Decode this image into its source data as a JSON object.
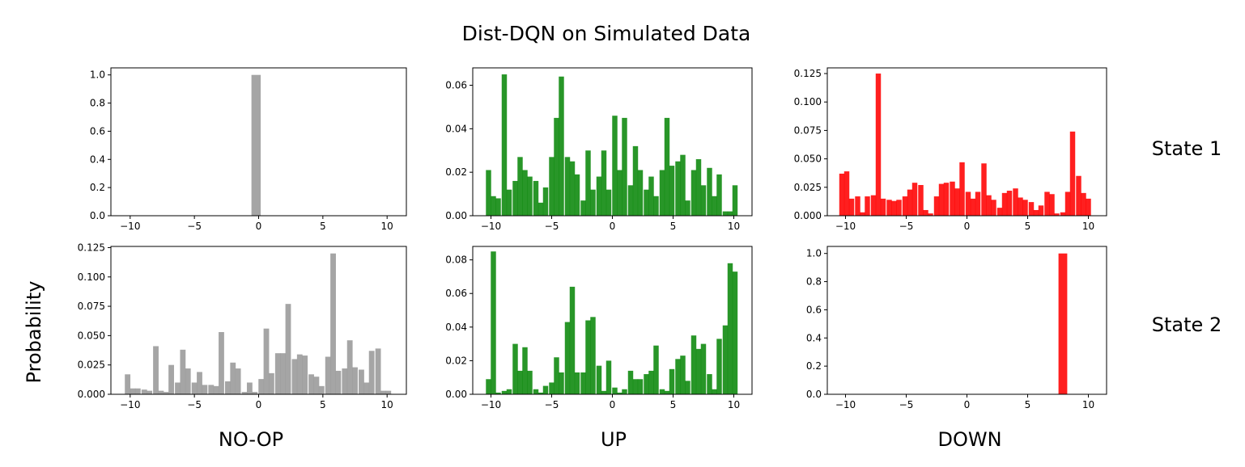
{
  "figure": {
    "title": "Dist-DQN on Simulated Data",
    "ylabel": "Probability",
    "column_labels": [
      "NO-OP",
      "UP",
      "DOWN"
    ],
    "row_labels": [
      "State 1",
      "State 2"
    ]
  },
  "chart_data": [
    {
      "type": "bar",
      "action": "NO-OP",
      "state": "State 1",
      "color": "#999999",
      "xlim": [
        -11.5,
        11.5
      ],
      "ylim": [
        0,
        1.05
      ],
      "xticks": [
        -10,
        -5,
        0,
        5,
        10
      ],
      "xtick_labels": [
        "−10",
        "−5",
        "0",
        "5",
        "10"
      ],
      "yticks": [
        0,
        0.2,
        0.4,
        0.6,
        0.8,
        1.0
      ],
      "ytick_labels": [
        "0.0",
        "0.2",
        "0.4",
        "0.6",
        "0.8",
        "1.0"
      ],
      "x": [
        -0.2
      ],
      "values": [
        1.0
      ]
    },
    {
      "type": "bar",
      "action": "UP",
      "state": "State 1",
      "color": "#0a870a",
      "xlim": [
        -11.5,
        11.5
      ],
      "ylim": [
        0,
        0.068
      ],
      "xticks": [
        -10,
        -5,
        0,
        5,
        10
      ],
      "xtick_labels": [
        "−10",
        "−5",
        "0",
        "5",
        "10"
      ],
      "yticks": [
        0,
        0.02,
        0.04,
        0.06
      ],
      "ytick_labels": [
        "0.00",
        "0.02",
        "0.04",
        "0.06"
      ],
      "x": [
        -10.2,
        -9.8,
        -9.4,
        -8.9,
        -8.5,
        -8.0,
        -7.6,
        -7.2,
        -6.8,
        -6.3,
        -5.9,
        -5.5,
        -5.0,
        -4.6,
        -4.2,
        -3.7,
        -3.3,
        -2.9,
        -2.4,
        -2.0,
        -1.6,
        -1.1,
        -0.7,
        -0.3,
        0.2,
        0.6,
        1.0,
        1.5,
        1.9,
        2.3,
        2.8,
        3.2,
        3.6,
        4.1,
        4.5,
        4.9,
        5.4,
        5.8,
        6.2,
        6.7,
        7.1,
        7.5,
        8.0,
        8.4,
        8.8,
        9.3,
        9.7,
        10.1
      ],
      "values": [
        0.021,
        0.009,
        0.008,
        0.065,
        0.012,
        0.016,
        0.027,
        0.021,
        0.018,
        0.016,
        0.006,
        0.013,
        0.027,
        0.045,
        0.064,
        0.027,
        0.025,
        0.019,
        0.007,
        0.03,
        0.012,
        0.018,
        0.03,
        0.012,
        0.046,
        0.021,
        0.045,
        0.014,
        0.032,
        0.021,
        0.012,
        0.018,
        0.009,
        0.021,
        0.045,
        0.023,
        0.025,
        0.028,
        0.007,
        0.021,
        0.026,
        0.014,
        0.022,
        0.009,
        0.019,
        0.002,
        0.002,
        0.014
      ]
    },
    {
      "type": "bar",
      "action": "DOWN",
      "state": "State 1",
      "color": "#ff0000",
      "xlim": [
        -11.5,
        11.5
      ],
      "ylim": [
        0,
        0.13
      ],
      "xticks": [
        -10,
        -5,
        0,
        5,
        10
      ],
      "xtick_labels": [
        "−10",
        "−5",
        "0",
        "5",
        "10"
      ],
      "yticks": [
        0,
        0.025,
        0.05,
        0.075,
        0.1,
        0.125
      ],
      "ytick_labels": [
        "0.000",
        "0.025",
        "0.050",
        "0.075",
        "0.100",
        "0.125"
      ],
      "x": [
        -10.3,
        -9.9,
        -9.5,
        -9.0,
        -8.6,
        -8.2,
        -7.7,
        -7.3,
        -6.9,
        -6.4,
        -6.0,
        -5.6,
        -5.1,
        -4.7,
        -4.3,
        -3.8,
        -3.4,
        -3.0,
        -2.5,
        -2.1,
        -1.7,
        -1.2,
        -0.8,
        -0.4,
        0.1,
        0.5,
        0.9,
        1.4,
        1.8,
        2.2,
        2.7,
        3.1,
        3.5,
        4.0,
        4.4,
        4.8,
        5.3,
        5.7,
        6.1,
        6.6,
        7.0,
        7.4,
        7.9,
        8.3,
        8.7,
        9.2,
        9.6,
        10.0
      ],
      "values": [
        0.037,
        0.039,
        0.015,
        0.017,
        0.003,
        0.017,
        0.018,
        0.125,
        0.015,
        0.014,
        0.013,
        0.014,
        0.017,
        0.023,
        0.029,
        0.027,
        0.005,
        0.002,
        0.017,
        0.028,
        0.029,
        0.03,
        0.024,
        0.047,
        0.021,
        0.015,
        0.021,
        0.046,
        0.018,
        0.014,
        0.007,
        0.02,
        0.022,
        0.024,
        0.016,
        0.014,
        0.012,
        0.005,
        0.009,
        0.021,
        0.019,
        0.002,
        0.003,
        0.021,
        0.074,
        0.035,
        0.02,
        0.015
      ]
    },
    {
      "type": "bar",
      "action": "NO-OP",
      "state": "State 2",
      "color": "#999999",
      "xlim": [
        -11.5,
        11.5
      ],
      "ylim": [
        0,
        0.126
      ],
      "xticks": [
        -10,
        -5,
        0,
        5,
        10
      ],
      "xtick_labels": [
        "−10",
        "−5",
        "0",
        "5",
        "10"
      ],
      "yticks": [
        0,
        0.025,
        0.05,
        0.075,
        0.1,
        0.125
      ],
      "ytick_labels": [
        "0.000",
        "0.025",
        "0.050",
        "0.075",
        "0.100",
        "0.125"
      ],
      "x": [
        -10.2,
        -9.8,
        -9.4,
        -8.9,
        -8.5,
        -8.0,
        -7.6,
        -7.2,
        -6.8,
        -6.3,
        -5.9,
        -5.5,
        -5.0,
        -4.6,
        -4.2,
        -3.7,
        -3.3,
        -2.9,
        -2.4,
        -2.0,
        -1.6,
        -1.1,
        -0.7,
        -0.3,
        0.2,
        0.6,
        1.0,
        1.5,
        1.9,
        2.3,
        2.8,
        3.2,
        3.6,
        4.1,
        4.5,
        4.9,
        5.4,
        5.8,
        6.2,
        6.7,
        7.1,
        7.5,
        8.0,
        8.4,
        8.8,
        9.3,
        9.7,
        10.1
      ],
      "values": [
        0.017,
        0.005,
        0.005,
        0.004,
        0.003,
        0.041,
        0.003,
        0.002,
        0.025,
        0.01,
        0.038,
        0.022,
        0.01,
        0.019,
        0.008,
        0.008,
        0.007,
        0.053,
        0.011,
        0.027,
        0.022,
        0.002,
        0.01,
        0.002,
        0.013,
        0.056,
        0.018,
        0.035,
        0.035,
        0.077,
        0.03,
        0.034,
        0.033,
        0.017,
        0.015,
        0.007,
        0.032,
        0.12,
        0.02,
        0.022,
        0.046,
        0.023,
        0.021,
        0.01,
        0.037,
        0.039,
        0.003,
        0.003
      ]
    },
    {
      "type": "bar",
      "action": "UP",
      "state": "State 2",
      "color": "#0a870a",
      "xlim": [
        -11.5,
        11.5
      ],
      "ylim": [
        0,
        0.088
      ],
      "xticks": [
        -10,
        -5,
        0,
        5,
        10
      ],
      "xtick_labels": [
        "−10",
        "−5",
        "0",
        "5",
        "10"
      ],
      "yticks": [
        0,
        0.02,
        0.04,
        0.06,
        0.08
      ],
      "ytick_labels": [
        "0.00",
        "0.02",
        "0.04",
        "0.06",
        "0.08"
      ],
      "x": [
        -10.2,
        -9.8,
        -9.4,
        -8.9,
        -8.5,
        -8.0,
        -7.6,
        -7.2,
        -6.8,
        -6.3,
        -5.9,
        -5.5,
        -5.0,
        -4.6,
        -4.2,
        -3.7,
        -3.3,
        -2.9,
        -2.4,
        -2.0,
        -1.6,
        -1.1,
        -0.7,
        -0.3,
        0.2,
        0.6,
        1.0,
        1.5,
        1.9,
        2.3,
        2.8,
        3.2,
        3.6,
        4.1,
        4.5,
        4.9,
        5.4,
        5.8,
        6.2,
        6.7,
        7.1,
        7.5,
        8.0,
        8.4,
        8.8,
        9.3,
        9.7,
        10.1
      ],
      "values": [
        0.009,
        0.085,
        0.001,
        0.002,
        0.003,
        0.03,
        0.014,
        0.028,
        0.014,
        0.003,
        0.001,
        0.005,
        0.007,
        0.022,
        0.013,
        0.043,
        0.064,
        0.013,
        0.013,
        0.044,
        0.046,
        0.017,
        0.002,
        0.02,
        0.004,
        0.001,
        0.003,
        0.014,
        0.009,
        0.009,
        0.012,
        0.014,
        0.029,
        0.003,
        0.002,
        0.015,
        0.021,
        0.023,
        0.008,
        0.035,
        0.027,
        0.03,
        0.012,
        0.003,
        0.033,
        0.041,
        0.078,
        0.073
      ]
    },
    {
      "type": "bar",
      "action": "DOWN",
      "state": "State 2",
      "color": "#ff0000",
      "xlim": [
        -11.5,
        11.5
      ],
      "ylim": [
        0,
        1.05
      ],
      "xticks": [
        -10,
        -5,
        0,
        5,
        10
      ],
      "xtick_labels": [
        "−10",
        "−5",
        "0",
        "5",
        "10"
      ],
      "yticks": [
        0,
        0.2,
        0.4,
        0.6,
        0.8,
        1.0
      ],
      "ytick_labels": [
        "0.0",
        "0.2",
        "0.4",
        "0.6",
        "0.8",
        "1.0"
      ],
      "x": [
        7.9
      ],
      "values": [
        1.0
      ]
    }
  ]
}
